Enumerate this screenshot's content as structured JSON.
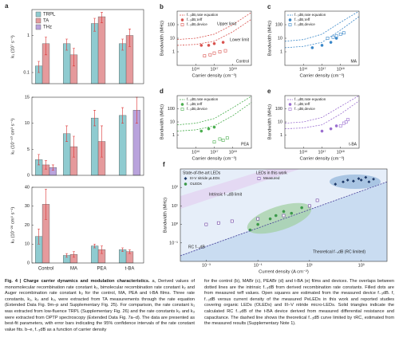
{
  "chart_data": [
    {
      "type": "bar",
      "panel": "a",
      "ylabel": "k₁ (10⁷ s⁻¹)",
      "log_y": true,
      "ylim": [
        0.05,
        5
      ],
      "yticks": [
        0.1,
        1
      ],
      "legend": "top-left",
      "categories": [
        null,
        null,
        null,
        null
      ],
      "series": [
        {
          "name": "TRPL",
          "color": "#8fcbd0",
          "values": [
            0.15,
            0.6,
            2.1,
            0.6
          ],
          "errors": [
            0.05,
            0.2,
            0.8,
            0.2
          ]
        },
        {
          "name": "TA",
          "color": "#e59a9c",
          "values": [
            0.6,
            0.3,
            3.2,
            1.0
          ],
          "errors": [
            0.3,
            0.15,
            1.0,
            0.5
          ]
        },
        {
          "name": "THz",
          "color": "#b9a3dc",
          "values": [
            null,
            null,
            null,
            null
          ],
          "errors": [
            null,
            null,
            null,
            null
          ]
        }
      ]
    },
    {
      "type": "bar",
      "ylabel": "k₂ (10⁻¹⁰ cm³ s⁻¹)",
      "ylim": [
        0,
        15
      ],
      "yticks": [
        0,
        5,
        10,
        15
      ],
      "categories": [
        null,
        null,
        null,
        null
      ],
      "series": [
        {
          "color": "#8fcbd0",
          "values": [
            3,
            8,
            11,
            11.5
          ],
          "errors": [
            1,
            1.5,
            1.5,
            1.5
          ]
        },
        {
          "color": "#e59a9c",
          "values": [
            2,
            5.5,
            6.5,
            null
          ],
          "errors": [
            0.8,
            2,
            3,
            null
          ]
        },
        {
          "color": "#b9a3dc",
          "values": [
            1.5,
            null,
            null,
            12.5
          ],
          "errors": [
            0.5,
            null,
            null,
            2.5
          ]
        }
      ]
    },
    {
      "type": "bar",
      "ylabel": "k₃ (10⁻²⁸ cm⁶ s⁻¹)",
      "ylim": [
        0,
        40
      ],
      "yticks": [
        0,
        10,
        20,
        30,
        40
      ],
      "categories": [
        "Control",
        "MA",
        "PEA",
        "t-BA"
      ],
      "series": [
        {
          "color": "#8fcbd0",
          "values": [
            14,
            4,
            9,
            7
          ],
          "errors": [
            4,
            1,
            1,
            1
          ]
        },
        {
          "color": "#e59a9c",
          "values": [
            31,
            4.5,
            7,
            6
          ],
          "errors": [
            8,
            1.5,
            2,
            1
          ]
        },
        {
          "color": "#b9a3dc",
          "values": [
            null,
            null,
            null,
            null
          ],
          "errors": [
            null,
            null,
            null,
            null
          ]
        }
      ]
    },
    {
      "type": "scatter",
      "panel": "b",
      "label": "Control",
      "xlabel": "Carrier density (cm⁻³)",
      "ylabel": "Bandwidth (MHz)",
      "log_x": true,
      "log_y": true,
      "xlim": [
        1000000000000000.0,
        1e+19
      ],
      "ylim": [
        0.1,
        1000
      ],
      "xticks": [
        {
          "value": 1e+16,
          "label": "10¹⁶"
        },
        {
          "value": 1e+17,
          "label": "10¹⁷"
        },
        {
          "value": 1e+18,
          "label": "10¹⁸"
        }
      ],
      "yticks": [
        1,
        10,
        100
      ],
      "annotations": [
        "Upper limit",
        "Lower limit"
      ],
      "series": [
        {
          "name": "f₋₃dB,rate equation",
          "color": "#d9534f",
          "style": "dashed",
          "x": [
            1000000000000000.0,
            1e+16,
            1e+17,
            1e+18,
            1e+19
          ],
          "values": [
            3,
            3.5,
            6,
            30,
            250
          ]
        },
        {
          "color": "#d9534f",
          "style": "dashed",
          "x": [
            1000000000000000.0,
            1e+16,
            1e+17,
            1e+18,
            1e+19
          ],
          "values": [
            8,
            10,
            20,
            100,
            800
          ]
        },
        {
          "name": "f₋₃dB,τeff",
          "color": "#d9534f",
          "marker": "circle",
          "x": [
            2e+16,
            5e+16,
            1e+17,
            3e+17
          ],
          "values": [
            3,
            3,
            4,
            5
          ]
        },
        {
          "name": "f₋₃dB,device",
          "color": "#d9534f",
          "marker": "square",
          "open": true,
          "x": [
            3e+16,
            6e+16,
            1e+17,
            2e+17,
            4e+17
          ],
          "values": [
            0.5,
            0.6,
            0.8,
            1.0,
            1.2
          ]
        }
      ]
    },
    {
      "type": "scatter",
      "panel": "c",
      "label": "MA",
      "xlabel": "Carrier density (cm⁻³)",
      "ylabel": "Bandwidth (MHz)",
      "log_x": true,
      "log_y": true,
      "xlim": [
        1000000000000000.0,
        1e+19
      ],
      "ylim": [
        0.1,
        1000
      ],
      "xticks": [
        {
          "value": 1e+16,
          "label": "10¹⁶"
        },
        {
          "value": 1e+17,
          "label": "10¹⁷"
        },
        {
          "value": 1e+18,
          "label": "10¹⁸"
        }
      ],
      "yticks": [
        1,
        10,
        100
      ],
      "series": [
        {
          "name": "f₋₃dB,rate equation",
          "color": "#3a87c8",
          "style": "dashed",
          "x": [
            1000000000000000.0,
            1e+16,
            1e+17,
            1e+18,
            1e+19
          ],
          "values": [
            2,
            2.5,
            5,
            40,
            400
          ]
        },
        {
          "color": "#3a87c8",
          "style": "dashed",
          "x": [
            1000000000000000.0,
            1e+16,
            1e+17,
            1e+18,
            1e+19
          ],
          "values": [
            6,
            8,
            20,
            150,
            1000
          ]
        },
        {
          "name": "f₋₃dB,τeff",
          "color": "#3a87c8",
          "marker": "circle",
          "x": [
            3e+16,
            1e+17,
            3e+17,
            6e+17
          ],
          "values": [
            2,
            3,
            5,
            10
          ]
        },
        {
          "name": "f₋₃dB,device",
          "color": "#3a87c8",
          "marker": "square",
          "open": true,
          "x": [
            2e+17,
            4e+17,
            6e+17,
            1e+18,
            1.5e+18
          ],
          "values": [
            10,
            12,
            15,
            20,
            25
          ]
        }
      ]
    },
    {
      "type": "scatter",
      "panel": "d",
      "label": "PEA",
      "xlabel": "Carrier density (cm⁻³)",
      "ylabel": "Bandwidth (MHz)",
      "log_x": true,
      "log_y": true,
      "xlim": [
        1000000000000000.0,
        1e+19
      ],
      "ylim": [
        0.1,
        1000
      ],
      "xticks": [
        {
          "value": 1e+16,
          "label": "10¹⁶"
        },
        {
          "value": 1e+17,
          "label": "10¹⁷"
        },
        {
          "value": 1e+18,
          "label": "10¹⁸"
        }
      ],
      "yticks": [
        1,
        10,
        100
      ],
      "series": [
        {
          "name": "f₋₃dB,rate equation",
          "color": "#4caf50",
          "style": "dashed",
          "x": [
            1000000000000000.0,
            1e+16,
            1e+17,
            1e+18,
            1e+19
          ],
          "values": [
            2,
            2.5,
            5,
            30,
            300
          ]
        },
        {
          "color": "#4caf50",
          "style": "dashed",
          "x": [
            1000000000000000.0,
            1e+16,
            1e+17,
            1e+18,
            1e+19
          ],
          "values": [
            6,
            8,
            18,
            120,
            900
          ]
        },
        {
          "name": "f₋₃dB,τeff",
          "color": "#4caf50",
          "marker": "circle",
          "x": [
            2e+16,
            5e+16,
            1e+17
          ],
          "values": [
            2,
            3,
            4
          ]
        },
        {
          "name": "f₋₃dB,device",
          "color": "#4caf50",
          "marker": "square",
          "open": true,
          "x": [
            1e+17,
            2e+17,
            3e+17,
            5e+17
          ],
          "values": [
            0.3,
            0.5,
            0.4,
            0.6
          ]
        }
      ]
    },
    {
      "type": "scatter",
      "panel": "e",
      "label": "t-BA",
      "xlabel": "Carrier density (cm⁻³)",
      "ylabel": "Bandwidth (MHz)",
      "log_x": true,
      "log_y": true,
      "xlim": [
        1000000000000000.0,
        1e+19
      ],
      "ylim": [
        0.1,
        1000
      ],
      "xticks": [
        {
          "value": 1e+16,
          "label": "10¹⁶"
        },
        {
          "value": 1e+17,
          "label": "10¹⁷"
        },
        {
          "value": 1e+18,
          "label": "10¹⁸"
        }
      ],
      "yticks": [
        1,
        10,
        100
      ],
      "series": [
        {
          "name": "f₋₃dB,rate equation",
          "color": "#9b6fd0",
          "style": "dashed",
          "x": [
            1000000000000000.0,
            1e+16,
            1e+17,
            1e+18,
            1e+19
          ],
          "values": [
            3,
            3.5,
            6,
            40,
            400
          ]
        },
        {
          "color": "#9b6fd0",
          "style": "dashed",
          "x": [
            1000000000000000.0,
            1e+16,
            1e+17,
            1e+18,
            1e+19
          ],
          "values": [
            8,
            10,
            22,
            150,
            1000
          ]
        },
        {
          "name": "f₋₃dB,τeff",
          "color": "#9b6fd0",
          "marker": "circle",
          "x": [
            1e+17,
            3e+17,
            6e+17
          ],
          "values": [
            2,
            3,
            5
          ]
        },
        {
          "name": "f₋₃dB,device",
          "color": "#9b6fd0",
          "marker": "square",
          "open": true,
          "x": [
            1e+18,
            1.5e+18,
            2e+18,
            2.5e+18
          ],
          "values": [
            5,
            8,
            10,
            15
          ]
        }
      ]
    },
    {
      "type": "scatter",
      "panel": "f",
      "xlabel": "Current density (A cm⁻²)",
      "ylabel": "Bandwidth (MHz)",
      "log_x": true,
      "log_y": true,
      "xlim": [
        0.0001,
        10000.0
      ],
      "ylim": [
        0.01,
        1000
      ],
      "xticks": [
        {
          "value": 0.001,
          "label": "10⁻³"
        },
        {
          "value": 0.1,
          "label": "10⁻¹"
        },
        {
          "value": 10,
          "label": "10¹"
        },
        {
          "value": 1000,
          "label": "10³"
        }
      ],
      "yticks": [
        {
          "value": 0.1,
          "label": "10⁻¹"
        },
        {
          "value": 1,
          "label": "10⁰"
        },
        {
          "value": 10,
          "label": "10¹"
        },
        {
          "value": 100,
          "label": "10²"
        }
      ],
      "legend_titles": [
        "State-of-the-art LEDs",
        "LEDs in this work"
      ],
      "annotations": [
        "Intrinsic f₋₃dB limit",
        "Theoretical f₋₃dB (RC limited)"
      ],
      "series": [
        {
          "name": "III-V nitride µLEDs",
          "color": "#1d3c6e",
          "marker": "diamond",
          "x": [
            100,
            200,
            300,
            500,
            800,
            1000,
            1500,
            2000,
            3000
          ],
          "values": [
            150,
            200,
            250,
            220,
            300,
            250,
            350,
            200,
            280
          ]
        },
        {
          "name": "OLEDs",
          "color": "#3c9a4a",
          "marker": "circle",
          "x": [
            0.05,
            0.1,
            0.3,
            0.5,
            1,
            2,
            5,
            10
          ],
          "values": [
            0.5,
            1,
            2,
            3,
            5,
            4,
            8,
            10
          ]
        },
        {
          "name": "Measured",
          "color": "#6b3fa0",
          "marker": "square",
          "open": true,
          "x": [
            0.001,
            0.003,
            0.01,
            0.1,
            1,
            10,
            20
          ],
          "values": [
            1,
            1.2,
            1.5,
            2,
            3,
            10,
            20
          ]
        },
        {
          "name": "RC f₋₃dB",
          "color": "#4b3f98",
          "style": "dashed",
          "x": [
            0.0001,
            0.01,
            1,
            100,
            10000
          ],
          "values": [
            0.02,
            0.2,
            2,
            20,
            200
          ]
        }
      ]
    }
  ],
  "caption": {
    "title": "Fig. 4 | Charge carrier dynamics and modulation characteristics.",
    "left": "a, Derived values of monomolecular recombination rate constant k₁, bimolecular recombination rate constant k₂ and Auger recombination rate constant k₃ for the control, MA, PEA and t-BA films. Three rate constants, k₁, k₂ and k₃, were extracted from TA measurements through the rate equation (Extended Data Fig. 9m–p and Supplementary Fig. 25). For comparison, the rate constant k₁ was extracted from low-fluence TRPL (Supplementary Fig. 26) and the rate constants k₂ and k₃ were extracted from OPTP spectroscopy (Extended Data Fig. 7a–d). The data are presented as best-fit parameters, with error bars indicating the 95% confidence intervals of the rate constant value fits. b–e, f₋₃dB as a function of carrier density",
    "right": "for the control (b), MABr (c), PEABr (d) and t-BA (e) films and devices. The overlaps between dotted lines are the intrinsic f₋₃dB from derived recombination rate constants. Filled dots are from measured τeff values. Open squares are estimated from the measured device f₋₃dB. f, f₋₃dB versus current density of the measured PeLEDs in this work and reported studies covering organic LEDs (OLEDs) and III–V nitride micro-LEDs. Solid triangles indicate the calculated RC f₋₃dB of the t-BA device derived from measured differential resistance and capacitance. The dashed line shows the theoretical f₋₃dB curve limited by τRC, estimated from the measured results (Supplementary Note 1)."
  }
}
